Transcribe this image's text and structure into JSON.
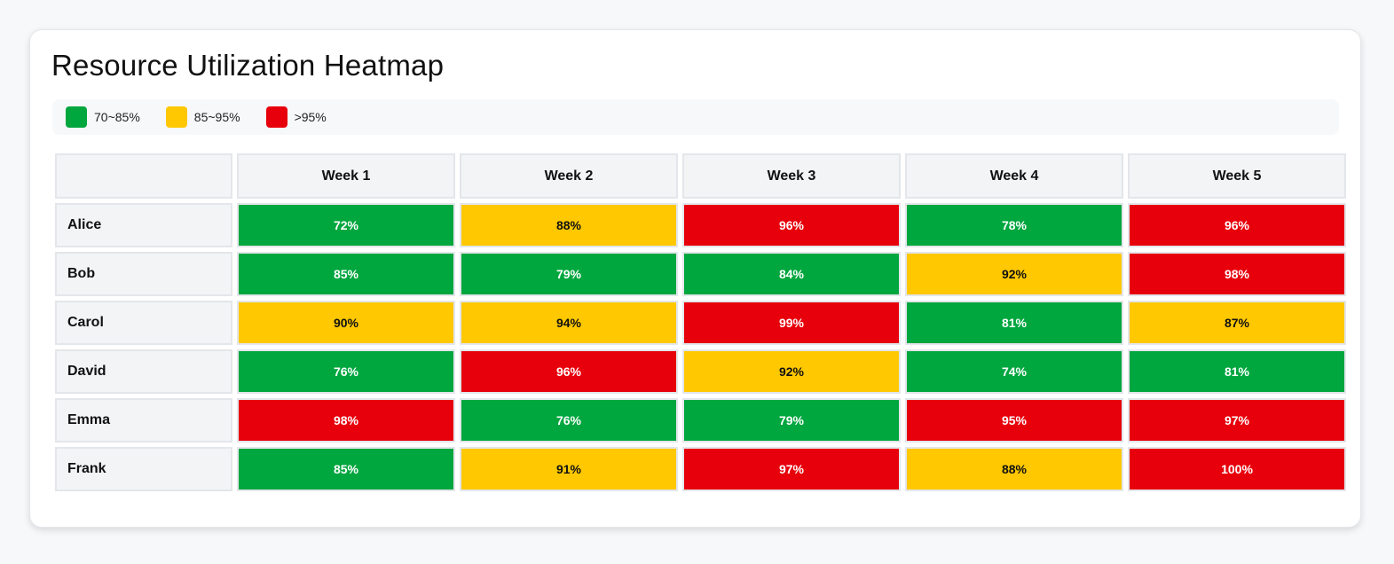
{
  "title": "Resource Utilization Heatmap",
  "colors": {
    "low": "#00a63e",
    "mid": "#ffc800",
    "high": "#e7000b",
    "text_on_low": "#ffffff",
    "text_on_mid": "#111111",
    "text_on_high": "#ffffff"
  },
  "legend": [
    {
      "label": "70~85%",
      "color": "#00a63e"
    },
    {
      "label": "85~95%",
      "color": "#ffc800"
    },
    {
      "label": ">95%",
      "color": "#e7000b"
    }
  ],
  "chart_data": {
    "type": "heatmap",
    "title": "Resource Utilization Heatmap",
    "columns": [
      "Week 1",
      "Week 2",
      "Week 3",
      "Week 4",
      "Week 5"
    ],
    "rows": [
      {
        "name": "Alice",
        "values": [
          72,
          88,
          96,
          78,
          96
        ]
      },
      {
        "name": "Bob",
        "values": [
          85,
          79,
          84,
          92,
          98
        ]
      },
      {
        "name": "Carol",
        "values": [
          90,
          94,
          99,
          81,
          87
        ]
      },
      {
        "name": "David",
        "values": [
          76,
          96,
          92,
          74,
          81
        ]
      },
      {
        "name": "Emma",
        "values": [
          98,
          76,
          79,
          95,
          97
        ]
      },
      {
        "name": "Frank",
        "values": [
          85,
          91,
          97,
          88,
          100
        ]
      }
    ],
    "unit": "%",
    "legend_position": "top-left"
  }
}
